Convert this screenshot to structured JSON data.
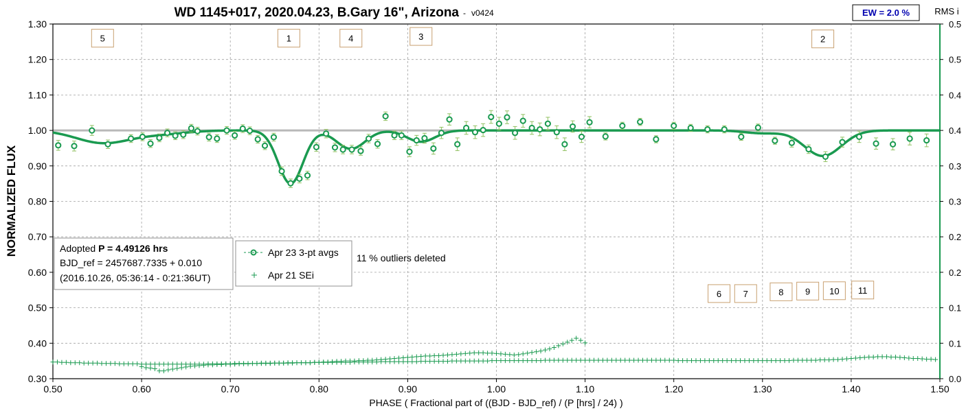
{
  "chart_data": {
    "type": "scatter",
    "title": "WD 1145+017, 2020.04.23, B.Gary 16\", Arizona",
    "title_suffix": "-",
    "version": "v0424",
    "xlabel": "PHASE ( Fractional part of ((BJD - BJD_ref) / (P [hrs] / 24) )",
    "ylabel": "NORMALIZED FLUX",
    "y2label": "RMS i",
    "xlim": [
      0.5,
      1.5
    ],
    "ylim": [
      0.3,
      1.3
    ],
    "y2lim": [
      0.0,
      0.5
    ],
    "grid": true,
    "x_ticks": [
      "0.50",
      "0.60",
      "0.70",
      "0.80",
      "0.90",
      "1.00",
      "1.10",
      "1.20",
      "1.30",
      "1.40",
      "1.50"
    ],
    "y_ticks": [
      "0.30",
      "0.40",
      "0.50",
      "0.60",
      "0.70",
      "0.80",
      "0.90",
      "1.00",
      "1.10",
      "1.20",
      "1.30"
    ],
    "y2_ticks": [
      "0.0",
      "0.1",
      "0.1",
      "0.2",
      "0.2",
      "0.3",
      "0.3",
      "0.4",
      "0.4",
      "0.5",
      "0.5"
    ],
    "ew_box": "EW = 2.0 %",
    "info_box": {
      "line1_prefix": "Adopted ",
      "line1_bold": "P = 4.49126 hrs",
      "line2": "BJD_ref = 2457687.7335 + 0.010",
      "line3": "(2016.10.26, 05:36:14 - 0:21:36UT)"
    },
    "legend": {
      "placement": "middle-left",
      "entries": [
        {
          "label": "Apr 23 3-pt avgs",
          "marker": "circle"
        },
        {
          "label": "Apr 21 SEi",
          "marker": "plus"
        }
      ]
    },
    "outliers_note": "11 % outliers deleted",
    "dip_labels": [
      {
        "text": "5",
        "x": 0.556,
        "y": 1.26
      },
      {
        "text": "1",
        "x": 0.766,
        "y": 1.26
      },
      {
        "text": "4",
        "x": 0.836,
        "y": 1.26
      },
      {
        "text": "3",
        "x": 0.915,
        "y": 1.265
      },
      {
        "text": "2",
        "x": 1.368,
        "y": 1.258
      },
      {
        "text": "6",
        "x": 1.251,
        "y": 0.54
      },
      {
        "text": "7",
        "x": 1.281,
        "y": 0.54
      },
      {
        "text": "8",
        "x": 1.321,
        "y": 0.545
      },
      {
        "text": "9",
        "x": 1.351,
        "y": 0.547
      },
      {
        "text": "10",
        "x": 1.381,
        "y": 0.548
      },
      {
        "text": "11",
        "x": 1.413,
        "y": 0.55
      }
    ],
    "colors": {
      "series": "#1a9a50",
      "errbar": "#90c060",
      "ref_line": "#b8b8b8",
      "ew_text": "#0000b0",
      "label_border": "#c8a070"
    },
    "series": [
      {
        "name": "Apr 23 3-pt avgs",
        "marker": "circle",
        "x": [
          0.506,
          0.524,
          0.544,
          0.562,
          0.588,
          0.601,
          0.61,
          0.62,
          0.629,
          0.638,
          0.647,
          0.656,
          0.663,
          0.676,
          0.685,
          0.696,
          0.705,
          0.714,
          0.722,
          0.731,
          0.739,
          0.749,
          0.758,
          0.768,
          0.778,
          0.787,
          0.797,
          0.808,
          0.818,
          0.827,
          0.837,
          0.847,
          0.856,
          0.866,
          0.875,
          0.885,
          0.893,
          0.902,
          0.91,
          0.919,
          0.929,
          0.938,
          0.947,
          0.956,
          0.966,
          0.976,
          0.985,
          0.994,
          1.003,
          1.012,
          1.021,
          1.03,
          1.04,
          1.049,
          1.058,
          1.068,
          1.077,
          1.086,
          1.096,
          1.105,
          1.123,
          1.142,
          1.162,
          1.18,
          1.2,
          1.219,
          1.238,
          1.257,
          1.276,
          1.295,
          1.314,
          1.333,
          1.352,
          1.371,
          1.39,
          1.409,
          1.428,
          1.447,
          1.466,
          1.485
        ],
        "y": [
          0.958,
          0.956,
          1.0,
          0.961,
          0.977,
          0.982,
          0.963,
          0.979,
          0.993,
          0.985,
          0.988,
          1.006,
          0.998,
          0.981,
          0.977,
          1.0,
          0.986,
          1.005,
          0.999,
          0.975,
          0.957,
          0.981,
          0.885,
          0.851,
          0.864,
          0.873,
          0.953,
          0.991,
          0.952,
          0.946,
          0.946,
          0.942,
          0.977,
          0.962,
          1.04,
          0.986,
          0.986,
          0.94,
          0.972,
          0.978,
          0.949,
          0.993,
          1.031,
          0.961,
          1.007,
          0.995,
          1.001,
          1.038,
          1.019,
          1.037,
          0.993,
          1.027,
          1.007,
          1.003,
          1.019,
          0.995,
          0.961,
          1.011,
          0.982,
          1.023,
          0.983,
          1.013,
          1.024,
          0.975,
          1.013,
          1.007,
          1.003,
          1.003,
          0.982,
          1.008,
          0.971,
          0.965,
          0.947,
          0.926,
          0.967,
          0.982,
          0.963,
          0.961,
          0.977,
          0.972
        ],
        "err": [
          0.014,
          0.014,
          0.014,
          0.012,
          0.011,
          0.011,
          0.011,
          0.011,
          0.011,
          0.011,
          0.011,
          0.011,
          0.011,
          0.011,
          0.011,
          0.011,
          0.011,
          0.011,
          0.011,
          0.011,
          0.011,
          0.011,
          0.012,
          0.012,
          0.012,
          0.012,
          0.012,
          0.012,
          0.012,
          0.012,
          0.012,
          0.012,
          0.012,
          0.012,
          0.012,
          0.012,
          0.012,
          0.014,
          0.014,
          0.014,
          0.016,
          0.016,
          0.016,
          0.018,
          0.018,
          0.018,
          0.018,
          0.018,
          0.018,
          0.018,
          0.018,
          0.018,
          0.018,
          0.018,
          0.018,
          0.018,
          0.018,
          0.016,
          0.016,
          0.016,
          0.01,
          0.01,
          0.01,
          0.01,
          0.01,
          0.01,
          0.01,
          0.01,
          0.01,
          0.01,
          0.01,
          0.012,
          0.012,
          0.014,
          0.014,
          0.016,
          0.016,
          0.016,
          0.018,
          0.018
        ]
      },
      {
        "name": "Apr 21 SEi",
        "marker": "plus",
        "x_start": 0.5,
        "x_end": 1.495,
        "x_step": 0.005,
        "y": [
          0.347,
          0.347,
          0.346,
          0.346,
          0.345,
          0.345,
          0.345,
          0.344,
          0.344,
          0.344,
          0.344,
          0.343,
          0.343,
          0.343,
          0.343,
          0.342,
          0.342,
          0.342,
          0.342,
          0.342,
          0.341,
          0.341,
          0.341,
          0.341,
          0.341,
          0.341,
          0.341,
          0.341,
          0.341,
          0.341,
          0.341,
          0.341,
          0.341,
          0.341,
          0.341,
          0.342,
          0.342,
          0.342,
          0.342,
          0.342,
          0.342,
          0.343,
          0.343,
          0.343,
          0.343,
          0.343,
          0.343,
          0.344,
          0.344,
          0.344,
          0.344,
          0.344,
          0.344,
          0.345,
          0.345,
          0.345,
          0.345,
          0.345,
          0.345,
          0.346,
          0.346,
          0.346,
          0.346,
          0.346,
          0.346,
          0.346,
          0.346,
          0.346,
          0.347,
          0.347,
          0.347,
          0.347,
          0.347,
          0.347,
          0.348,
          0.348,
          0.348,
          0.348,
          0.348,
          0.348,
          0.348,
          0.348,
          0.348,
          0.349,
          0.349,
          0.349,
          0.349,
          0.349,
          0.349,
          0.349,
          0.35,
          0.35,
          0.35,
          0.35,
          0.35,
          0.35,
          0.35,
          0.35,
          0.35,
          0.351,
          0.351,
          0.351,
          0.351,
          0.351,
          0.351,
          0.351,
          0.351,
          0.351,
          0.351,
          0.351,
          0.351,
          0.352,
          0.352,
          0.352,
          0.352,
          0.352,
          0.352,
          0.352,
          0.352,
          0.352,
          0.352,
          0.352,
          0.352,
          0.352,
          0.352,
          0.352,
          0.352,
          0.352,
          0.352,
          0.352,
          0.352,
          0.352,
          0.352,
          0.352,
          0.352,
          0.352,
          0.352,
          0.352,
          0.352,
          0.352,
          0.352,
          0.351,
          0.351,
          0.351,
          0.351,
          0.351,
          0.351,
          0.351,
          0.351,
          0.351,
          0.351,
          0.351,
          0.351,
          0.351,
          0.351,
          0.351,
          0.351,
          0.351,
          0.351,
          0.351,
          0.351,
          0.351,
          0.351,
          0.351,
          0.351,
          0.351,
          0.351,
          0.352,
          0.352,
          0.352,
          0.352,
          0.352,
          0.352,
          0.353,
          0.353,
          0.353,
          0.354,
          0.354,
          0.355,
          0.356,
          0.357,
          0.358,
          0.359,
          0.36,
          0.361,
          0.361,
          0.362,
          0.362,
          0.362,
          0.361,
          0.361,
          0.36,
          0.359,
          0.358,
          0.357,
          0.357,
          0.356,
          0.355,
          0.355,
          0.354
        ]
      },
      {
        "name": "Apr 21 SEi",
        "marker": "plus",
        "x": [
          0.6,
          0.605,
          0.61,
          0.615,
          0.62,
          0.625,
          0.63,
          0.635,
          0.64,
          0.645,
          0.65,
          0.655,
          0.66,
          0.665,
          0.67,
          0.675,
          0.68,
          0.685,
          0.69,
          0.695,
          0.7,
          0.705,
          0.71,
          0.715,
          0.72,
          0.725,
          0.73,
          0.735,
          0.74,
          0.745,
          0.75,
          0.755,
          0.76,
          0.765,
          0.77,
          0.775,
          0.78,
          0.785,
          0.79,
          0.795,
          0.8,
          0.805,
          0.81,
          0.815,
          0.82,
          0.825,
          0.83,
          0.835,
          0.84,
          0.845,
          0.85,
          0.855,
          0.86,
          0.865,
          0.87,
          0.875,
          0.88,
          0.885,
          0.89,
          0.895,
          0.9,
          0.905,
          0.91,
          0.915,
          0.92,
          0.925,
          0.93,
          0.935,
          0.94,
          0.945,
          0.95,
          0.955,
          0.96,
          0.965,
          0.97,
          0.975,
          0.98,
          0.985,
          0.99,
          0.995,
          1.0,
          1.005,
          1.01,
          1.015,
          1.02,
          1.025,
          1.03,
          1.035,
          1.04,
          1.045,
          1.05,
          1.055,
          1.06,
          1.065,
          1.07,
          1.075,
          1.08,
          1.085,
          1.09,
          1.095,
          1.1
        ],
        "y": [
          0.334,
          0.331,
          0.33,
          0.328,
          0.322,
          0.322,
          0.325,
          0.327,
          0.329,
          0.331,
          0.333,
          0.335,
          0.336,
          0.337,
          0.338,
          0.339,
          0.339,
          0.34,
          0.34,
          0.341,
          0.341,
          0.341,
          0.342,
          0.342,
          0.342,
          0.343,
          0.343,
          0.343,
          0.343,
          0.343,
          0.344,
          0.344,
          0.344,
          0.344,
          0.344,
          0.345,
          0.345,
          0.345,
          0.345,
          0.346,
          0.346,
          0.347,
          0.347,
          0.348,
          0.349,
          0.349,
          0.35,
          0.35,
          0.35,
          0.351,
          0.351,
          0.352,
          0.352,
          0.353,
          0.354,
          0.355,
          0.356,
          0.357,
          0.358,
          0.359,
          0.36,
          0.361,
          0.362,
          0.363,
          0.364,
          0.364,
          0.365,
          0.365,
          0.366,
          0.367,
          0.368,
          0.369,
          0.37,
          0.371,
          0.372,
          0.373,
          0.373,
          0.373,
          0.372,
          0.372,
          0.371,
          0.37,
          0.369,
          0.368,
          0.367,
          0.368,
          0.37,
          0.372,
          0.374,
          0.376,
          0.378,
          0.381,
          0.384,
          0.388,
          0.393,
          0.398,
          0.403,
          0.408,
          0.414,
          0.408,
          0.401
        ]
      }
    ],
    "model_curve": {
      "dips": [
        {
          "center": 0.556,
          "depth": 0.035,
          "width": 0.03
        },
        {
          "center": 0.768,
          "depth": 0.15,
          "width": 0.014
        },
        {
          "center": 0.836,
          "depth": 0.052,
          "width": 0.016
        },
        {
          "center": 0.915,
          "depth": 0.032,
          "width": 0.016
        },
        {
          "center": 1.368,
          "depth": 0.072,
          "width": 0.021
        },
        {
          "center": 1.3,
          "depth": 0.008,
          "width": 0.02
        },
        {
          "center": 0.62,
          "depth": 0.01,
          "width": 0.03
        }
      ],
      "baseline": 1.0
    }
  }
}
